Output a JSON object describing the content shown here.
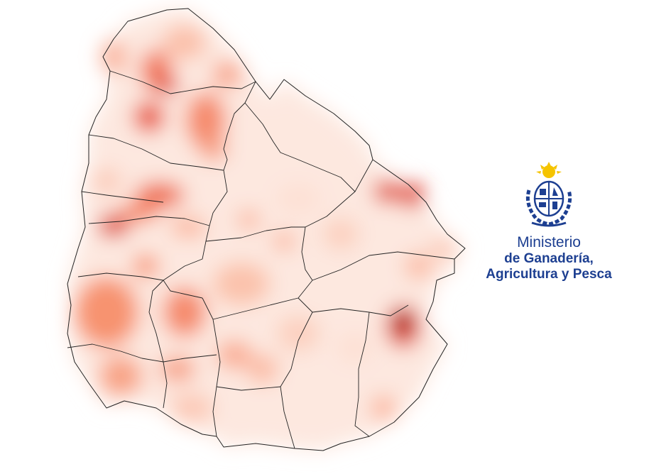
{
  "brand": {
    "line1": "Ministerio",
    "line2": "de Ganadería,",
    "line3": "Agricultura y Pesca",
    "color": "#1d3f91",
    "seal_icon": "coat-of-arms-of-uruguay-icon"
  },
  "map": {
    "country": "Uruguay",
    "type": "heatmap",
    "palette": [
      "#ffffff",
      "#fcd3c1",
      "#f4694f",
      "#cb181d",
      "#7a0410"
    ]
  }
}
